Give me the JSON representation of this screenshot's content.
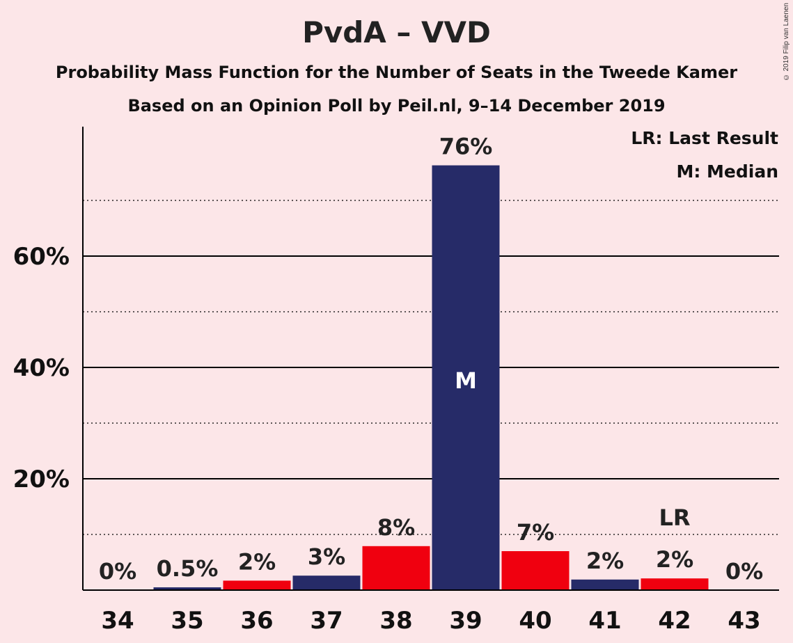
{
  "header": {
    "title": "PvdA – VVD",
    "subtitle": "Probability Mass Function for the Number of Seats in the Tweede Kamer",
    "subtitle2": "Based on an Opinion Poll by Peil.nl, 9–14 December 2019",
    "copyright": "© 2019 Filip van Laenen"
  },
  "legend": {
    "last_result": "LR: Last Result",
    "median": "M: Median"
  },
  "colors": {
    "background": "#FCE6E8",
    "navy": "#262B68",
    "red": "#F0000F"
  },
  "chart_data": {
    "type": "bar",
    "categories": [
      "34",
      "35",
      "36",
      "37",
      "38",
      "39",
      "40",
      "41",
      "42",
      "43"
    ],
    "values": [
      0,
      0.5,
      1.7,
      2.6,
      7.9,
      76.3,
      7.0,
      1.9,
      2.1,
      0
    ],
    "value_labels": [
      "0%",
      "0.5%",
      "2%",
      "3%",
      "8%",
      "76%",
      "7%",
      "2%",
      "2%",
      "0%"
    ],
    "bar_colors": [
      "navy",
      "navy",
      "red",
      "navy",
      "red",
      "navy",
      "red",
      "navy",
      "red",
      "navy"
    ],
    "median_category": "39",
    "median_marker": "M",
    "last_result_category": "42",
    "last_result_marker": "LR",
    "y_ticks": [
      20,
      40,
      60
    ],
    "y_tick_labels": [
      "20%",
      "40%",
      "60%"
    ],
    "minor_gridlines": [
      10,
      30,
      50,
      70
    ],
    "ylim": [
      0,
      83
    ],
    "grid": true
  }
}
